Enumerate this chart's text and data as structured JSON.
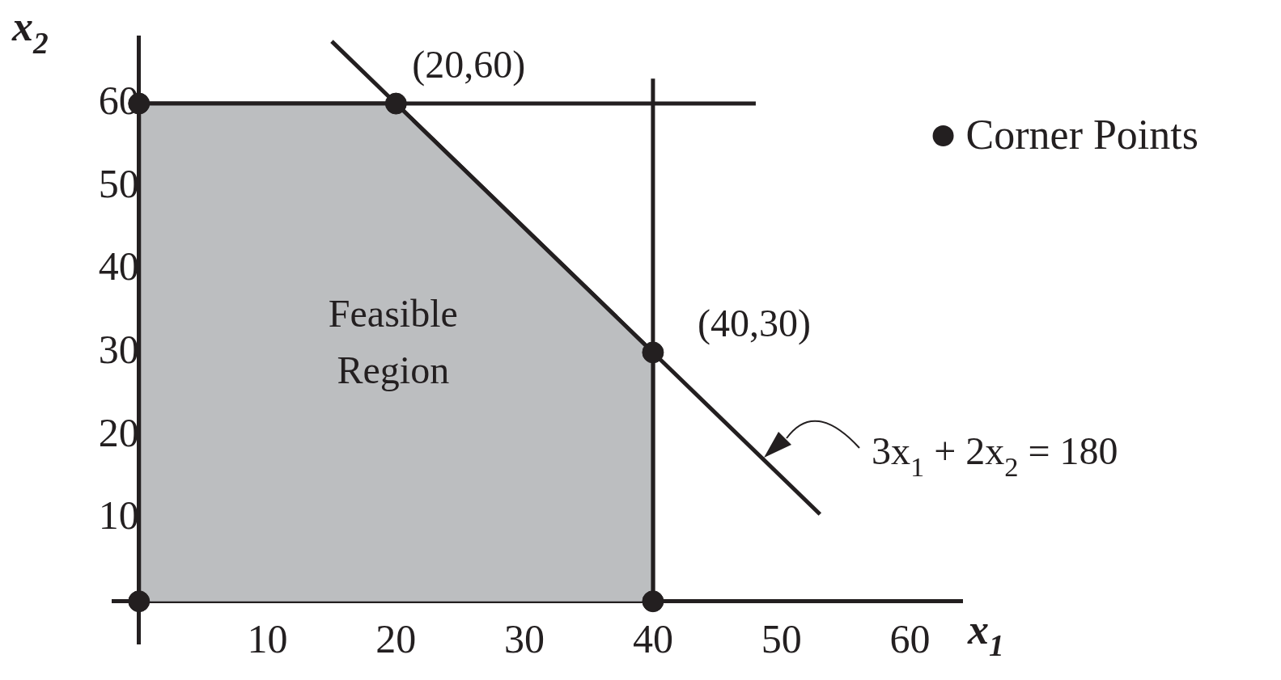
{
  "chart_data": {
    "type": "line",
    "xlabel": "x$_{1}$",
    "ylabel": "x$_{2}$",
    "xlim": [
      -2,
      64
    ],
    "ylim": [
      -5,
      68
    ],
    "xticks": [
      10,
      20,
      30,
      40,
      50,
      60
    ],
    "yticks": [
      10,
      20,
      30,
      40,
      50,
      60
    ],
    "grid": false,
    "legend": "top right",
    "series": [
      {
        "type": "area",
        "color": "#bcbec0",
        "x": [
          0,
          0,
          20,
          40,
          40
        ],
        "values": [
          0,
          60,
          60,
          30,
          0
        ]
      },
      {
        "color": "#231f20",
        "x": [
          0,
          48
        ],
        "values": [
          60,
          60
        ]
      },
      {
        "color": "#231f20",
        "x": [
          40,
          40
        ],
        "values": [
          0,
          63
        ]
      },
      {
        "color": "#231f20",
        "x": [
          15,
          53
        ],
        "values": [
          67.5,
          10.5
        ]
      },
      {
        "type": "scatter",
        "name": "Corner Points",
        "color": "#231f20",
        "x": [
          0,
          0,
          20,
          40,
          40
        ],
        "values": [
          0,
          60,
          60,
          30,
          0
        ]
      }
    ],
    "annotations": [
      {
        "text": "(20,60)",
        "x": 20,
        "y": 60
      },
      {
        "text": "(40,30)",
        "x": 40,
        "y": 30
      },
      "Feasible Region",
      {
        "text": "3x$_{1}$ + 2x$_{2}$ = 180",
        "x": 48.5,
        "y": 17.5
      }
    ]
  }
}
